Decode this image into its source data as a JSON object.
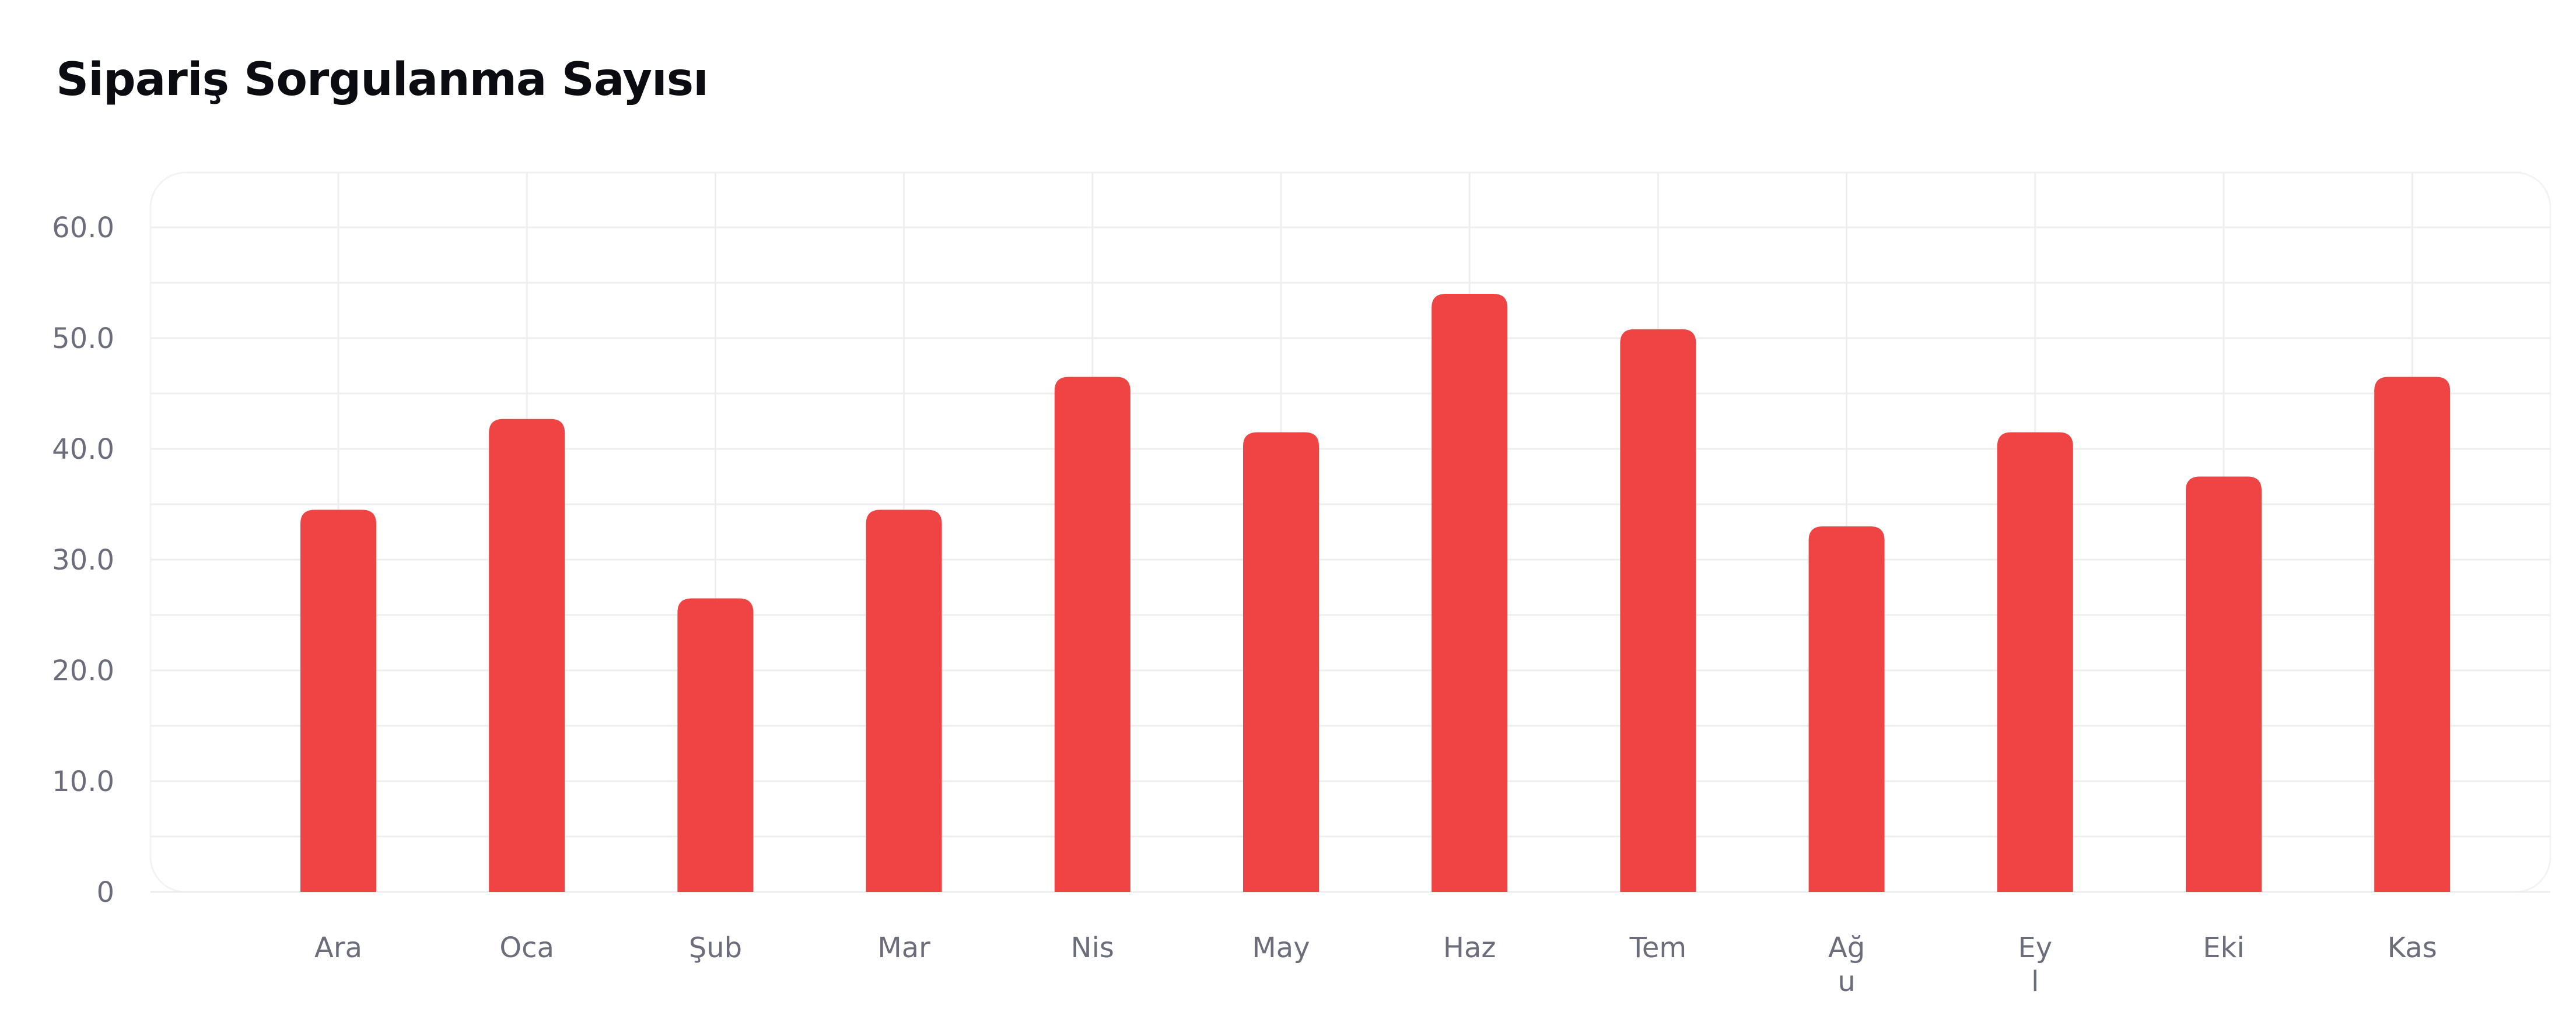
{
  "chart_data": {
    "type": "bar",
    "title": "Sipariş Sorgulanma Sayısı",
    "xlabel": "",
    "ylabel": "",
    "categories": [
      "Ara",
      "Oca",
      "Şub",
      "Mar",
      "Nis",
      "May",
      "Haz",
      "Tem",
      "Ağu",
      "Eyl",
      "Eki",
      "Kas"
    ],
    "category_label_lines": [
      [
        "Ara"
      ],
      [
        "Oca"
      ],
      [
        "Şub"
      ],
      [
        "Mar"
      ],
      [
        "Nis"
      ],
      [
        "May"
      ],
      [
        "Haz"
      ],
      [
        "Tem"
      ],
      [
        "Ağ",
        "u"
      ],
      [
        "Ey",
        "l"
      ],
      [
        "Eki"
      ],
      [
        "Kas"
      ]
    ],
    "values": [
      34.5,
      42.7,
      26.5,
      34.5,
      46.5,
      41.5,
      54,
      50.8,
      33,
      41.5,
      37.5,
      46.5
    ],
    "ylim": [
      0,
      60
    ],
    "y_ticks": [
      0,
      10,
      20,
      30,
      40,
      50,
      60
    ],
    "y_tick_labels": [
      "0",
      "10.0",
      "20.0",
      "30.0",
      "40.0",
      "50.0",
      "60.0"
    ],
    "grid": true,
    "legend": "none",
    "colors": {
      "bar": "#ef4444",
      "grid": "#eeeeee",
      "tick_text": "#6b6e7a",
      "title_text": "#0b0b12"
    }
  }
}
